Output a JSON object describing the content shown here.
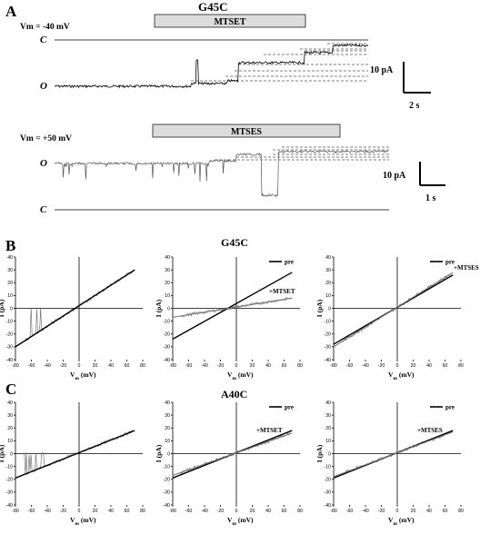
{
  "panel_a": {
    "label": "A",
    "title": "G45C",
    "trace1": {
      "vm_label": "Vm = -40 mV",
      "bar_label": "MTSET",
      "closed_label": "C",
      "open_label": "O",
      "scale_y": "10 pA",
      "scale_x": "2 s"
    },
    "trace2": {
      "vm_label": "Vm = +50 mV",
      "bar_label": "MTSES",
      "closed_label": "C",
      "open_label": "O",
      "scale_y": "10 pA",
      "scale_x": "1 s"
    }
  },
  "panel_b": {
    "label": "B",
    "title": "G45C"
  },
  "panel_c": {
    "label": "C",
    "title": "A40C"
  },
  "legend": {
    "pre": "pre",
    "mtset": "+MTSET",
    "mtses": "+MTSES"
  },
  "axes": {
    "xlabel_main": "V",
    "xlabel_sub": "m",
    "xlabel_unit": " (mV)",
    "ylabel": "I (pA)"
  },
  "chart_data": [
    {
      "type": "line",
      "panel": "B-left",
      "x": [
        -80,
        70
      ],
      "xlim": [
        -80,
        80
      ],
      "ylim": [
        -40,
        40
      ],
      "xticks": [
        "-80",
        "-60",
        "-40",
        "-20",
        "0",
        "20",
        "40",
        "60",
        "80"
      ],
      "yticks": [
        "40",
        "30",
        "20",
        "10",
        "0",
        "-10",
        "-20",
        "-30",
        "-40"
      ],
      "series": [
        {
          "values": [
            -30,
            30
          ]
        }
      ]
    },
    {
      "type": "line",
      "panel": "B-middle",
      "x": [
        -80,
        70
      ],
      "xlim": [
        -80,
        80
      ],
      "ylim": [
        -40,
        40
      ],
      "series": [
        {
          "name": "pre",
          "values": [
            -24,
            28
          ]
        },
        {
          "name": "+MTSET",
          "values": [
            -7,
            8
          ]
        }
      ]
    },
    {
      "type": "line",
      "panel": "B-right",
      "x": [
        -80,
        70
      ],
      "xlim": [
        -80,
        80
      ],
      "ylim": [
        -40,
        40
      ],
      "series": [
        {
          "name": "pre",
          "values": [
            -28,
            26
          ]
        },
        {
          "name": "+MTSES",
          "values": [
            -30,
            28
          ]
        }
      ]
    },
    {
      "type": "line",
      "panel": "C-left",
      "x": [
        -80,
        70
      ],
      "xlim": [
        -80,
        80
      ],
      "ylim": [
        -40,
        40
      ],
      "series": [
        {
          "values": [
            -19,
            18
          ]
        }
      ]
    },
    {
      "type": "line",
      "panel": "C-middle",
      "x": [
        -80,
        70
      ],
      "xlim": [
        -80,
        80
      ],
      "ylim": [
        -40,
        40
      ],
      "series": [
        {
          "name": "pre",
          "values": [
            -19,
            18
          ]
        },
        {
          "name": "+MTSET",
          "values": [
            -17,
            16
          ]
        }
      ]
    },
    {
      "type": "line",
      "panel": "C-right",
      "x": [
        -80,
        70
      ],
      "xlim": [
        -80,
        80
      ],
      "ylim": [
        -40,
        40
      ],
      "series": [
        {
          "name": "pre",
          "values": [
            -19,
            18
          ]
        },
        {
          "name": "+MTSES",
          "values": [
            -18,
            17
          ]
        }
      ]
    }
  ]
}
